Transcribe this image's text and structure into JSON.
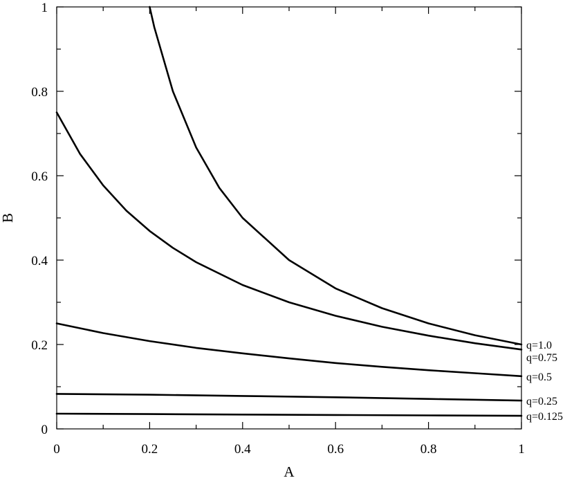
{
  "chart_data": {
    "type": "line",
    "xlabel": "A",
    "ylabel": "B",
    "xlim": [
      0,
      1
    ],
    "ylim": [
      0,
      1
    ],
    "x_ticks": [
      "0",
      "0.2",
      "0.4",
      "0.6",
      "0.8",
      "1"
    ],
    "y_ticks": [
      "0",
      "0.2",
      "0.4",
      "0.6",
      "0.8",
      "1"
    ],
    "grid": false,
    "legend": "none",
    "series": [
      {
        "name": "q=1.0",
        "x": [
          0.2,
          0.21,
          0.25,
          0.3,
          0.35,
          0.4,
          0.5,
          0.6,
          0.7,
          0.8,
          0.9,
          1.0
        ],
        "y": [
          1.0,
          0.952,
          0.8,
          0.667,
          0.571,
          0.5,
          0.4,
          0.333,
          0.286,
          0.25,
          0.222,
          0.2
        ]
      },
      {
        "name": "q=0.75",
        "x": [
          0,
          0.05,
          0.1,
          0.15,
          0.2,
          0.25,
          0.3,
          0.4,
          0.5,
          0.6,
          0.7,
          0.8,
          0.9,
          1.0
        ],
        "y": [
          0.75,
          0.652,
          0.577,
          0.517,
          0.469,
          0.429,
          0.395,
          0.341,
          0.3,
          0.268,
          0.242,
          0.221,
          0.203,
          0.188
        ]
      },
      {
        "name": "q=0.5",
        "x": [
          0,
          0.1,
          0.2,
          0.3,
          0.4,
          0.5,
          0.6,
          0.7,
          0.8,
          0.9,
          1.0
        ],
        "y": [
          0.25,
          0.227,
          0.208,
          0.192,
          0.179,
          0.167,
          0.156,
          0.147,
          0.139,
          0.132,
          0.125
        ]
      },
      {
        "name": "q=0.25",
        "x": [
          0,
          0.2,
          0.4,
          0.6,
          0.8,
          1.0
        ],
        "y": [
          0.083,
          0.081,
          0.078,
          0.075,
          0.071,
          0.067
        ]
      },
      {
        "name": "q=0.125",
        "x": [
          0,
          0.2,
          0.4,
          0.6,
          0.8,
          1.0
        ],
        "y": [
          0.036,
          0.035,
          0.034,
          0.033,
          0.032,
          0.031
        ]
      }
    ]
  }
}
